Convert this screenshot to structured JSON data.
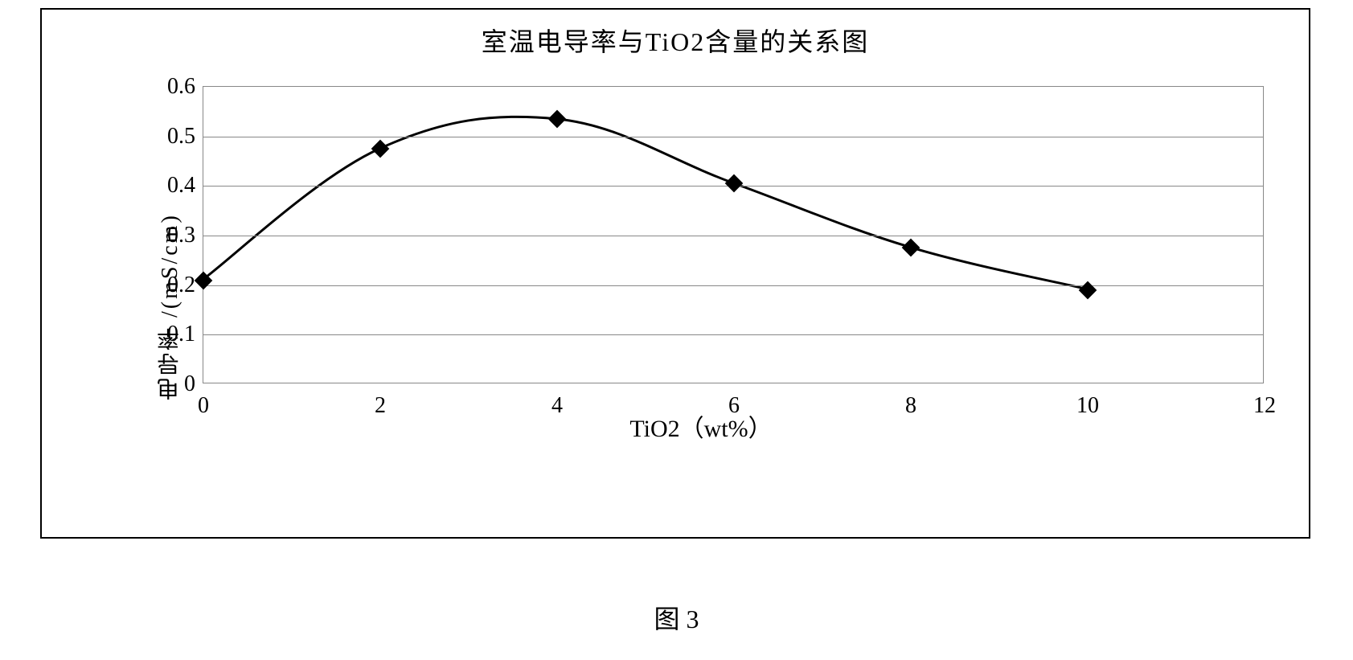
{
  "chart": {
    "type": "line",
    "title": "室温电导率与TiO2含量的关系图",
    "title_fontsize": 32,
    "x_label": "TiO2（wt%）",
    "y_label": "电导率  /(mS/cm)",
    "label_fontsize": 28,
    "tick_fontsize": 28,
    "x_min": 0,
    "x_max": 12,
    "x_ticks": [
      0,
      2,
      4,
      6,
      8,
      10,
      12
    ],
    "y_min": 0,
    "y_max": 0.6,
    "y_ticks": [
      0,
      0.1,
      0.2,
      0.3,
      0.4,
      0.5,
      0.6
    ],
    "x_values": [
      0,
      2,
      4,
      6,
      8,
      10
    ],
    "y_values": [
      0.21,
      0.475,
      0.535,
      0.405,
      0.275,
      0.19
    ],
    "line_color": "#000000",
    "line_width": 3,
    "marker_style": "diamond",
    "marker_size": 16,
    "marker_color": "#000000",
    "grid_color": "#888888",
    "background_color": "#ffffff",
    "border_color": "#000000",
    "smooth": true
  },
  "caption": "图 3"
}
